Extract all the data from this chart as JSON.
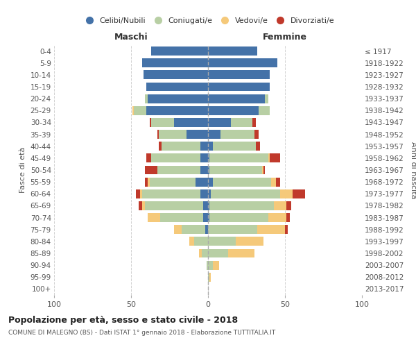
{
  "age_groups": [
    "0-4",
    "5-9",
    "10-14",
    "15-19",
    "20-24",
    "25-29",
    "30-34",
    "35-39",
    "40-44",
    "45-49",
    "50-54",
    "55-59",
    "60-64",
    "65-69",
    "70-74",
    "75-79",
    "80-84",
    "85-89",
    "90-94",
    "95-99",
    "100+"
  ],
  "birth_years": [
    "2013-2017",
    "2008-2012",
    "2003-2007",
    "1998-2002",
    "1993-1997",
    "1988-1992",
    "1983-1987",
    "1978-1982",
    "1973-1977",
    "1968-1972",
    "1963-1967",
    "1958-1962",
    "1953-1957",
    "1948-1952",
    "1943-1947",
    "1938-1942",
    "1933-1937",
    "1928-1932",
    "1923-1927",
    "1918-1922",
    "≤ 1917"
  ],
  "male": {
    "celibe": [
      37,
      43,
      42,
      40,
      39,
      40,
      22,
      14,
      5,
      5,
      5,
      8,
      5,
      3,
      3,
      2,
      0,
      0,
      0,
      0,
      0
    ],
    "coniugato": [
      0,
      0,
      0,
      0,
      2,
      8,
      15,
      18,
      25,
      32,
      28,
      30,
      38,
      38,
      28,
      15,
      9,
      4,
      1,
      0,
      0
    ],
    "vedovo": [
      0,
      0,
      0,
      0,
      0,
      1,
      0,
      0,
      0,
      0,
      0,
      1,
      1,
      2,
      8,
      5,
      3,
      2,
      0,
      0,
      0
    ],
    "divorziato": [
      0,
      0,
      0,
      0,
      0,
      0,
      1,
      1,
      2,
      3,
      8,
      2,
      3,
      2,
      0,
      0,
      0,
      0,
      0,
      0,
      0
    ]
  },
  "female": {
    "nubile": [
      32,
      45,
      40,
      40,
      37,
      33,
      15,
      8,
      3,
      1,
      1,
      3,
      2,
      1,
      1,
      0,
      0,
      0,
      0,
      0,
      0
    ],
    "coniugata": [
      0,
      0,
      0,
      0,
      2,
      7,
      14,
      22,
      28,
      38,
      34,
      38,
      45,
      42,
      38,
      32,
      18,
      13,
      3,
      1,
      0
    ],
    "vedova": [
      0,
      0,
      0,
      0,
      0,
      0,
      0,
      0,
      0,
      1,
      1,
      3,
      8,
      8,
      12,
      18,
      18,
      17,
      4,
      1,
      0
    ],
    "divorziata": [
      0,
      0,
      0,
      0,
      0,
      0,
      2,
      3,
      3,
      7,
      1,
      3,
      8,
      3,
      2,
      2,
      0,
      0,
      0,
      0,
      0
    ]
  },
  "colors": {
    "celibe": "#4472a8",
    "coniugato": "#b8cfa4",
    "vedovo": "#f5c97a",
    "divorziato": "#c0392b"
  },
  "title": "Popolazione per età, sesso e stato civile - 2018",
  "subtitle": "COMUNE DI MALEGNO (BS) - Dati ISTAT 1° gennaio 2018 - Elaborazione TUTTITALIA.IT",
  "ylabel_left": "Fasce di età",
  "ylabel_right": "Anni di nascita",
  "xlabel_maschi": "Maschi",
  "xlabel_femmine": "Femmine",
  "xlim": 100,
  "legend_labels": [
    "Celibi/Nubili",
    "Coniugati/e",
    "Vedovi/e",
    "Divorziati/e"
  ]
}
